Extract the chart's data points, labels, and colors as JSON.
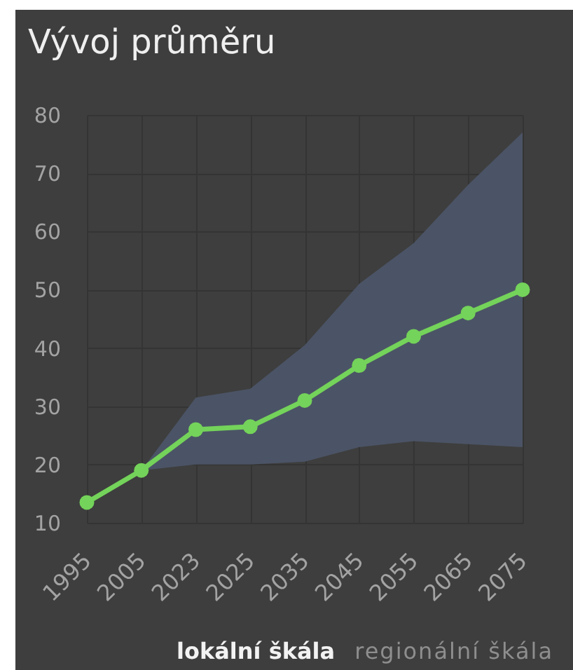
{
  "chart_data": {
    "type": "line",
    "title": "Vývoj průměru",
    "categories": [
      "1995",
      "2005",
      "2023",
      "2025",
      "2035",
      "2045",
      "2055",
      "2065",
      "2075"
    ],
    "series": [
      {
        "color": "#74d35a",
        "values": [
          13.5,
          19,
          26,
          26.5,
          31,
          37,
          42,
          46,
          50
        ],
        "lower": [
          null,
          19,
          20,
          20,
          20.5,
          23,
          24,
          23.5,
          23
        ],
        "upper": [
          null,
          19,
          31.5,
          33,
          40.5,
          51,
          58,
          68,
          77
        ]
      }
    ],
    "ylim": [
      10,
      80
    ],
    "yticks": [
      10,
      20,
      30,
      40,
      50,
      60,
      70,
      80
    ],
    "grid": true,
    "marker": "circle",
    "line_style": "solid",
    "annotations": [
      "lokální škála",
      "regionální škála"
    ]
  }
}
